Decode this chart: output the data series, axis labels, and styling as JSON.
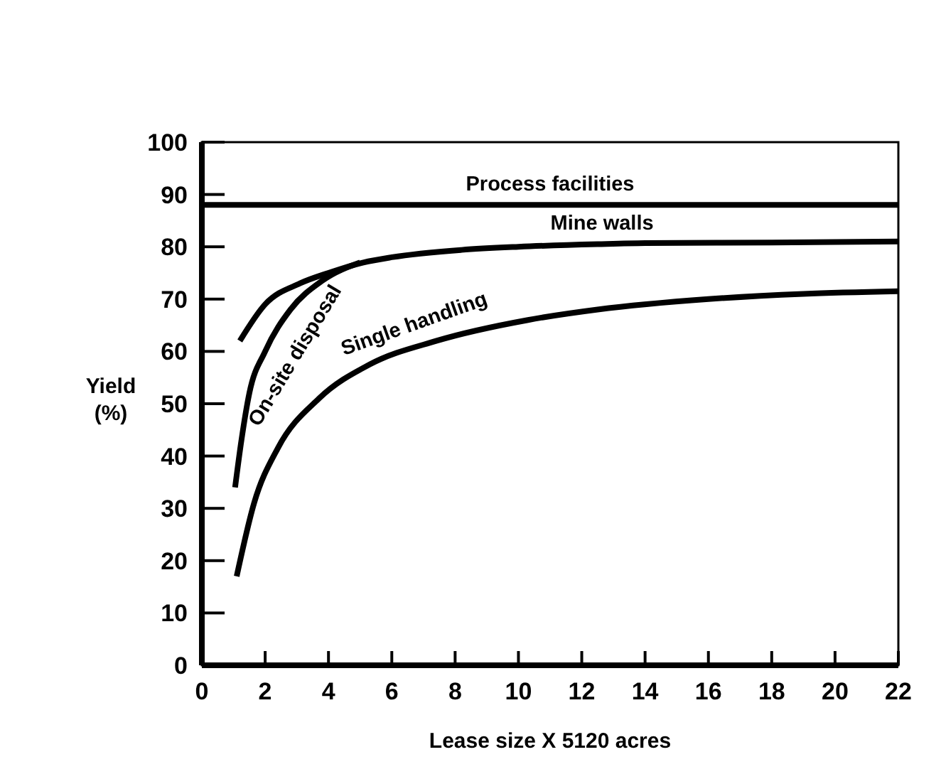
{
  "chart_data": {
    "type": "line",
    "xlabel": "Lease size X 5120 acres",
    "ylabel": "Yield\n(%)",
    "xlim": [
      0,
      22
    ],
    "ylim": [
      0,
      100
    ],
    "xticks": [
      0,
      2,
      4,
      6,
      8,
      10,
      12,
      14,
      16,
      18,
      20,
      22
    ],
    "yticks": [
      0,
      10,
      20,
      30,
      40,
      50,
      60,
      70,
      80,
      90,
      100
    ],
    "grid": false,
    "marker": "none",
    "line_style": "solid",
    "series": [
      {
        "name": "Process facilities",
        "color": "#000000",
        "x": [
          0,
          22
        ],
        "values": [
          88,
          88
        ]
      },
      {
        "name": "Mine walls",
        "color": "#000000",
        "x": [
          1.2,
          2,
          3.1,
          4,
          5.1,
          6,
          8.2,
          10,
          12.5,
          14,
          18,
          22
        ],
        "values": [
          62,
          69,
          73,
          75,
          77,
          78,
          79.4,
          80,
          80.5,
          80.7,
          80.8,
          81
        ]
      },
      {
        "name": "On-site disposal",
        "color": "#000000",
        "x": [
          1.05,
          1.25,
          1.5,
          2,
          2.8,
          3.8,
          5
        ],
        "values": [
          34,
          43,
          52,
          60,
          68,
          73.5,
          77
        ]
      },
      {
        "name": "Single handling",
        "color": "#000000",
        "x": [
          1.1,
          1.65,
          2.4,
          3.7,
          5.3,
          7.4,
          10.3,
          12.5,
          16,
          19,
          22
        ],
        "values": [
          17,
          31,
          41.5,
          51,
          57.5,
          62,
          66,
          68,
          70,
          71,
          71.5
        ]
      }
    ]
  }
}
